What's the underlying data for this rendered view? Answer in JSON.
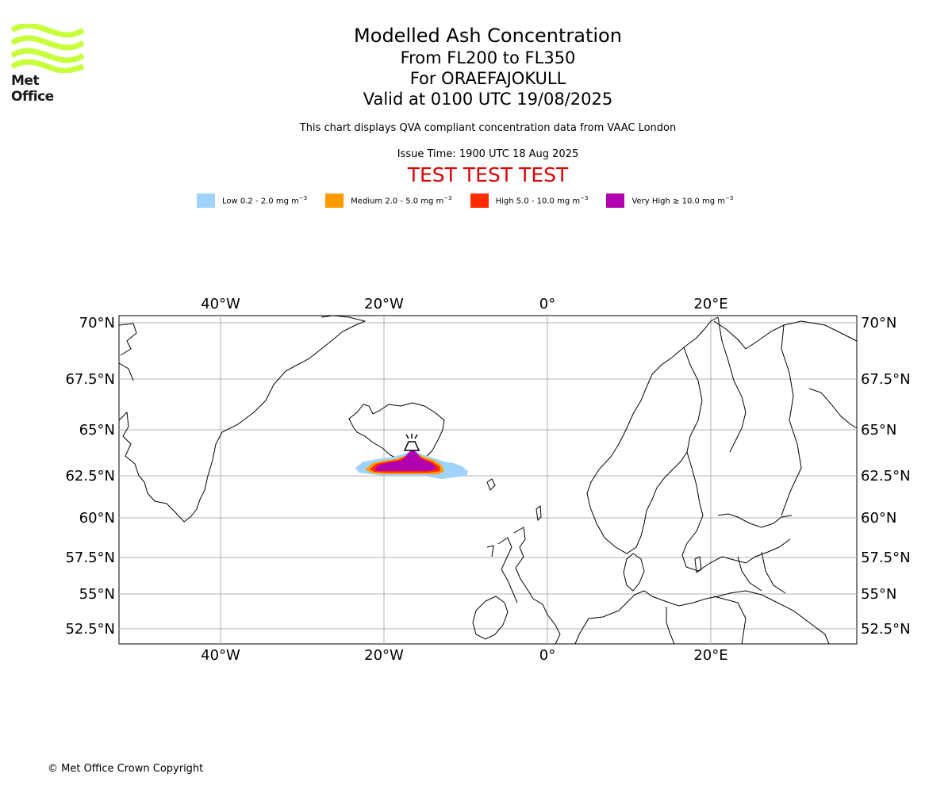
{
  "logo": {
    "text": "Met Office",
    "color": "#c8ff3c"
  },
  "header": {
    "title": "Modelled Ash Concentration",
    "levels": "From FL200 to FL350",
    "volcano": "For ORAEFAJOKULL",
    "valid": "Valid at 0100 UTC 19/08/2025",
    "note": "This chart displays QVA compliant concentration data from VAAC London",
    "issue": "Issue Time: 1900 UTC 18 Aug 2025",
    "test_banner": "TEST TEST TEST"
  },
  "legend": [
    {
      "label": "Low 0.2 - 2.0 mg m",
      "color": "#9fd3fc"
    },
    {
      "label": "Medium 2.0 - 5.0 mg m",
      "color": "#ff9a00"
    },
    {
      "label": "High 5.0 - 10.0 mg m",
      "color": "#ff2a00"
    },
    {
      "label": "Very High ≥ 10.0 mg m",
      "color": "#b000b0"
    }
  ],
  "legend_exponent": "−3",
  "map": {
    "lon_ticks": [
      "40°W",
      "20°W",
      "0°",
      "20°E"
    ],
    "lat_ticks": [
      "70°N",
      "67.5°N",
      "65°N",
      "62.5°N",
      "60°N",
      "57.5°N",
      "55°N",
      "52.5°N"
    ],
    "grid": true,
    "volcano_icon": "volcano-icon"
  },
  "footer": "© Met Office Crown Copyright"
}
